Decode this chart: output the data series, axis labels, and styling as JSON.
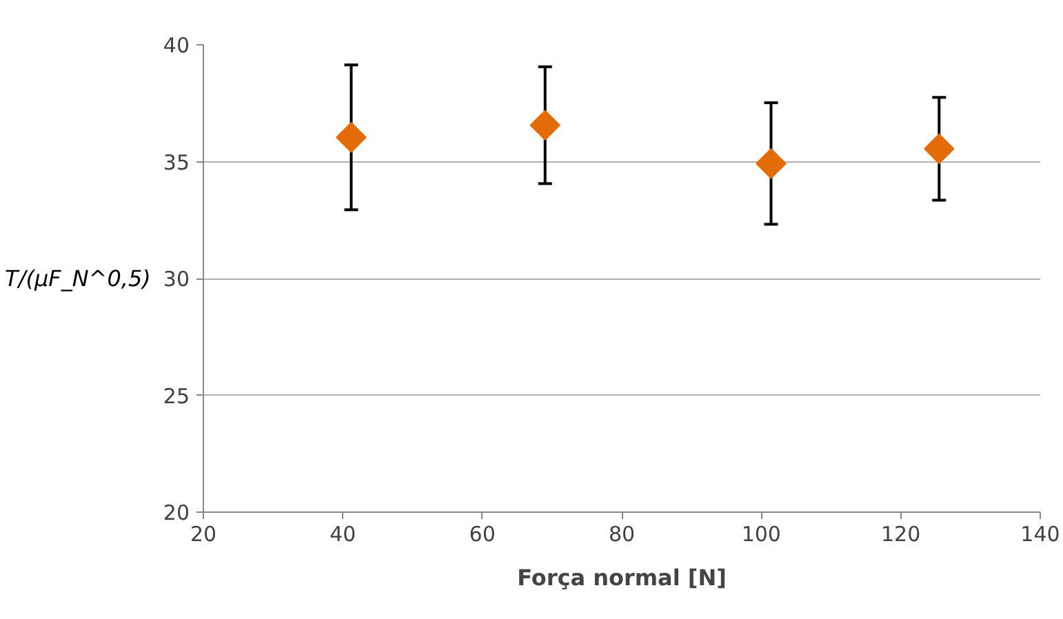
{
  "chart_data": {
    "type": "scatter",
    "xlabel": "Força normal [N]",
    "ylabel": "T/(μF_N^0,5)",
    "x": [
      41.2,
      69,
      101.4,
      125.5
    ],
    "series": [
      {
        "color": "#e36c09",
        "values": [
          36.04,
          36.56,
          34.92,
          35.55
        ],
        "errors": [
          3.1,
          2.5,
          2.6,
          2.2
        ]
      }
    ],
    "xlim": [
      20,
      140
    ],
    "xticks": [
      20,
      40,
      60,
      80,
      100,
      120,
      140
    ],
    "ylim": [
      20,
      40
    ],
    "yticks": [
      20,
      25,
      30,
      35,
      40
    ],
    "grid": "y",
    "marker": "diamond"
  }
}
